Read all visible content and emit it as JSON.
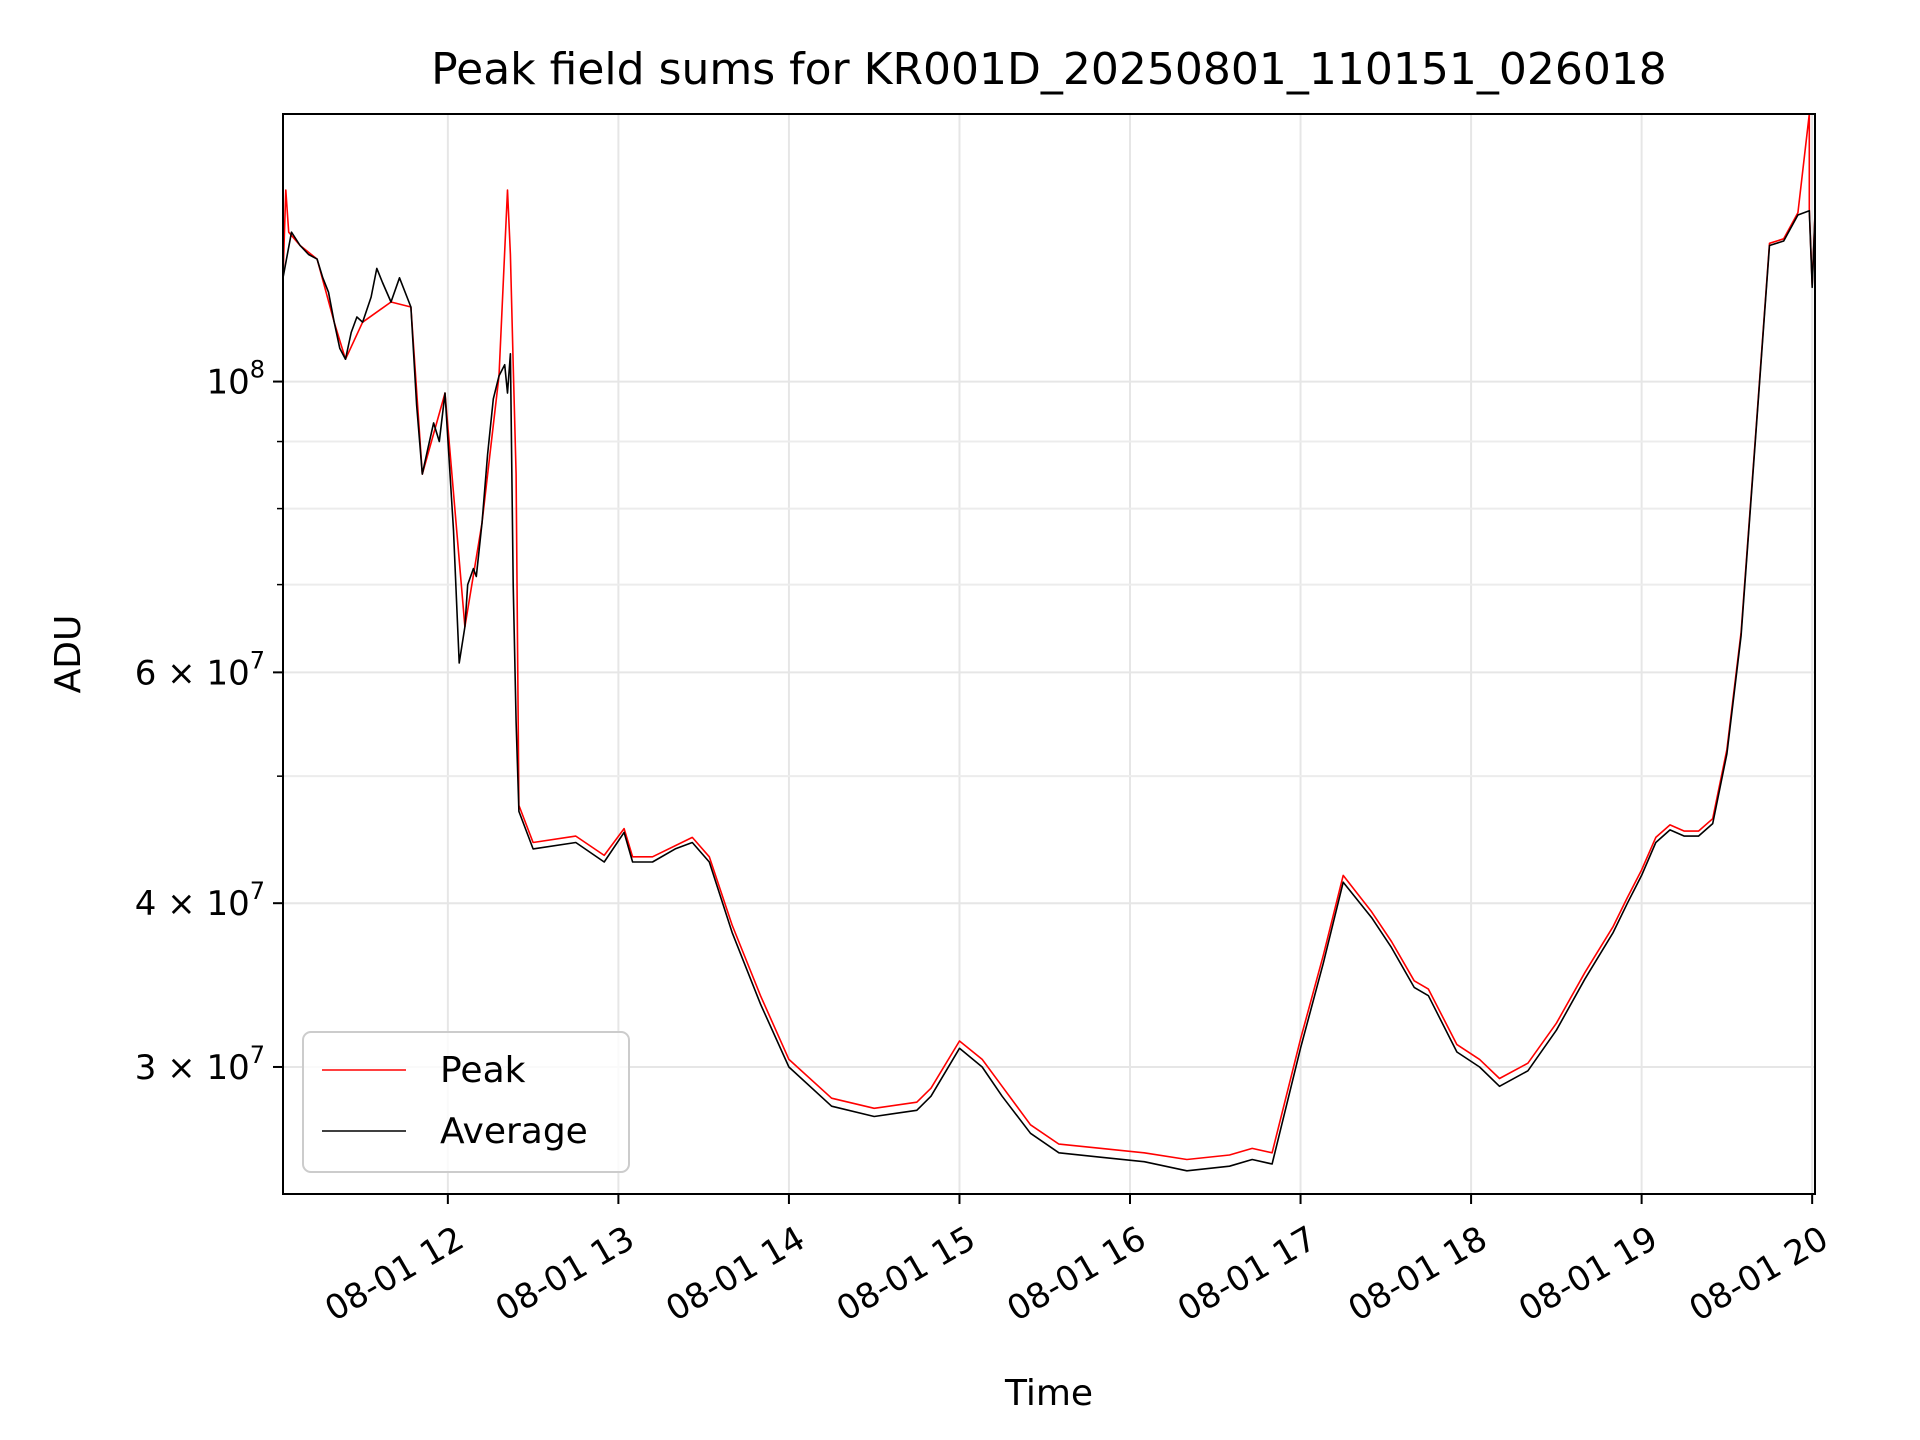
{
  "chart_data": {
    "type": "line",
    "title": "Peak field sums for KR001D_20250801_110151_026018",
    "xlabel": "Time",
    "ylabel": "ADU",
    "yscale": "log",
    "xlim": [
      "08-01 11:02",
      "08-01 20:01"
    ],
    "ylim": [
      24000000,
      160000000
    ],
    "grid": true,
    "legend_position": "lower-left",
    "x_ticks": [
      {
        "value": "08-01 12:00",
        "label": "08-01 12"
      },
      {
        "value": "08-01 13:00",
        "label": "08-01 13"
      },
      {
        "value": "08-01 14:00",
        "label": "08-01 14"
      },
      {
        "value": "08-01 15:00",
        "label": "08-01 15"
      },
      {
        "value": "08-01 16:00",
        "label": "08-01 16"
      },
      {
        "value": "08-01 17:00",
        "label": "08-01 17"
      },
      {
        "value": "08-01 18:00",
        "label": "08-01 18"
      },
      {
        "value": "08-01 19:00",
        "label": "08-01 19"
      },
      {
        "value": "08-01 20:00",
        "label": "08-01 20"
      }
    ],
    "y_ticks": [
      {
        "value": 30000000,
        "mant": "3 × 10",
        "exp": "7"
      },
      {
        "value": 40000000,
        "mant": "4 × 10",
        "exp": "7"
      },
      {
        "value": 60000000,
        "mant": "6 × 10",
        "exp": "7"
      },
      {
        "value": 100000000,
        "mant": "10",
        "exp": "8"
      }
    ],
    "y_minor_ticks": [
      50000000,
      70000000,
      80000000,
      90000000
    ],
    "series": [
      {
        "name": "Average",
        "color": "#000000",
        "x": [
          "08-01 11:02",
          "08-01 11:05",
          "08-01 11:08",
          "08-01 11:11",
          "08-01 11:14",
          "08-01 11:16",
          "08-01 11:18",
          "08-01 11:20",
          "08-01 11:22",
          "08-01 11:24",
          "08-01 11:26",
          "08-01 11:28",
          "08-01 11:30",
          "08-01 11:33",
          "08-01 11:35",
          "08-01 11:37",
          "08-01 11:40",
          "08-01 11:43",
          "08-01 11:47",
          "08-01 11:49",
          "08-01 11:51",
          "08-01 11:53",
          "08-01 11:55",
          "08-01 11:57",
          "08-01 11:59",
          "08-01 12:02",
          "08-01 12:04",
          "08-01 12:06",
          "08-01 12:07",
          "08-01 12:09",
          "08-01 12:10",
          "08-01 12:12",
          "08-01 12:14",
          "08-01 12:16",
          "08-01 12:18",
          "08-01 12:20",
          "08-01 12:21",
          "08-01 12:22",
          "08-01 12:23",
          "08-01 12:24",
          "08-01 12:25",
          "08-01 12:30",
          "08-01 12:45",
          "08-01 12:55",
          "08-01 13:02",
          "08-01 13:05",
          "08-01 13:12",
          "08-01 13:20",
          "08-01 13:26",
          "08-01 13:32",
          "08-01 13:40",
          "08-01 13:50",
          "08-01 14:00",
          "08-01 14:15",
          "08-01 14:30",
          "08-01 14:45",
          "08-01 14:50",
          "08-01 15:00",
          "08-01 15:08",
          "08-01 15:15",
          "08-01 15:25",
          "08-01 15:35",
          "08-01 15:50",
          "08-01 16:05",
          "08-01 16:20",
          "08-01 16:35",
          "08-01 16:43",
          "08-01 16:50",
          "08-01 17:00",
          "08-01 17:08",
          "08-01 17:15",
          "08-01 17:25",
          "08-01 17:32",
          "08-01 17:40",
          "08-01 17:45",
          "08-01 17:55",
          "08-01 18:03",
          "08-01 18:10",
          "08-01 18:20",
          "08-01 18:30",
          "08-01 18:40",
          "08-01 18:50",
          "08-01 18:55",
          "08-01 19:00",
          "08-01 19:05",
          "08-01 19:10",
          "08-01 19:15",
          "08-01 19:20",
          "08-01 19:25",
          "08-01 19:30",
          "08-01 19:35",
          "08-01 19:40",
          "08-01 19:45",
          "08-01 19:50",
          "08-01 19:55",
          "08-01 19:59",
          "08-01 20:00",
          "08-01 20:01"
        ],
        "values": [
          120000000,
          130000000,
          127000000,
          125000000,
          124000000,
          120000000,
          117000000,
          111000000,
          106000000,
          104000000,
          109000000,
          112000000,
          111000000,
          116000000,
          122000000,
          119000000,
          115000000,
          120000000,
          114000000,
          96000000,
          85000000,
          89000000,
          93000000,
          90000000,
          98000000,
          77000000,
          61000000,
          65000000,
          70000000,
          72000000,
          71000000,
          78000000,
          88000000,
          97000000,
          101000000,
          103000000,
          98000000,
          105000000,
          70000000,
          55000000,
          47000000,
          44000000,
          44500000,
          43000000,
          45300000,
          43000000,
          43000000,
          44000000,
          44500000,
          43000000,
          38000000,
          33500000,
          30000000,
          28000000,
          27500000,
          27800000,
          28500000,
          31000000,
          30000000,
          28500000,
          26700000,
          25800000,
          25600000,
          25400000,
          25000000,
          25200000,
          25500000,
          25300000,
          31000000,
          36000000,
          41500000,
          39000000,
          37000000,
          34500000,
          34000000,
          30800000,
          30000000,
          29000000,
          29800000,
          32000000,
          35000000,
          38000000,
          40000000,
          42000000,
          44500000,
          45500000,
          45000000,
          45000000,
          46000000,
          52000000,
          64000000,
          90000000,
          127000000,
          128000000,
          134000000,
          135000000,
          118000000,
          134000000
        ]
      },
      {
        "name": "Peak",
        "color": "#ff0000",
        "x": [
          "08-01 11:02",
          "08-01 11:03",
          "08-01 11:04",
          "08-01 11:08",
          "08-01 11:14",
          "08-01 11:20",
          "08-01 11:24",
          "08-01 11:30",
          "08-01 11:40",
          "08-01 11:47",
          "08-01 11:51",
          "08-01 11:59",
          "08-01 12:06",
          "08-01 12:12",
          "08-01 12:18",
          "08-01 12:21",
          "08-01 12:22",
          "08-01 12:23",
          "08-01 12:24",
          "08-01 12:25",
          "08-01 12:30",
          "08-01 12:45",
          "08-01 12:55",
          "08-01 13:02",
          "08-01 13:05",
          "08-01 13:12",
          "08-01 13:26",
          "08-01 13:32",
          "08-01 13:40",
          "08-01 13:50",
          "08-01 14:00",
          "08-01 14:15",
          "08-01 14:30",
          "08-01 14:45",
          "08-01 14:50",
          "08-01 15:00",
          "08-01 15:08",
          "08-01 15:15",
          "08-01 15:25",
          "08-01 15:35",
          "08-01 15:50",
          "08-01 16:05",
          "08-01 16:20",
          "08-01 16:35",
          "08-01 16:43",
          "08-01 16:50",
          "08-01 17:00",
          "08-01 17:08",
          "08-01 17:15",
          "08-01 17:25",
          "08-01 17:32",
          "08-01 17:40",
          "08-01 17:45",
          "08-01 17:55",
          "08-01 18:03",
          "08-01 18:10",
          "08-01 18:20",
          "08-01 18:30",
          "08-01 18:40",
          "08-01 18:50",
          "08-01 18:55",
          "08-01 19:00",
          "08-01 19:05",
          "08-01 19:10",
          "08-01 19:15",
          "08-01 19:20",
          "08-01 19:25",
          "08-01 19:30",
          "08-01 19:35",
          "08-01 19:40",
          "08-01 19:45",
          "08-01 19:50",
          "08-01 19:55",
          "08-01 19:59",
          "08-01 19:59",
          "08-01 20:00",
          "08-01 20:01"
        ],
        "values": [
          120000000,
          140000000,
          130000000,
          127000000,
          124000000,
          111000000,
          104000000,
          111000000,
          115000000,
          114000000,
          85000000,
          98000000,
          65000000,
          78000000,
          101000000,
          140000000,
          125000000,
          103000000,
          85000000,
          47500000,
          44500000,
          45000000,
          43500000,
          45600000,
          43400000,
          43400000,
          44900000,
          43400000,
          38500000,
          34000000,
          30400000,
          28400000,
          27900000,
          28200000,
          28900000,
          31400000,
          30400000,
          29000000,
          27100000,
          26200000,
          26000000,
          25800000,
          25500000,
          25700000,
          26000000,
          25800000,
          31500000,
          36500000,
          42000000,
          39400000,
          37400000,
          34900000,
          34400000,
          31200000,
          30400000,
          29400000,
          30200000,
          32400000,
          35400000,
          38400000,
          40400000,
          42400000,
          44900000,
          45900000,
          45400000,
          45400000,
          46400000,
          52400000,
          64400000,
          90400000,
          127500000,
          128500000,
          134500000,
          160000000,
          135500000,
          118500000,
          134500000
        ]
      }
    ]
  }
}
